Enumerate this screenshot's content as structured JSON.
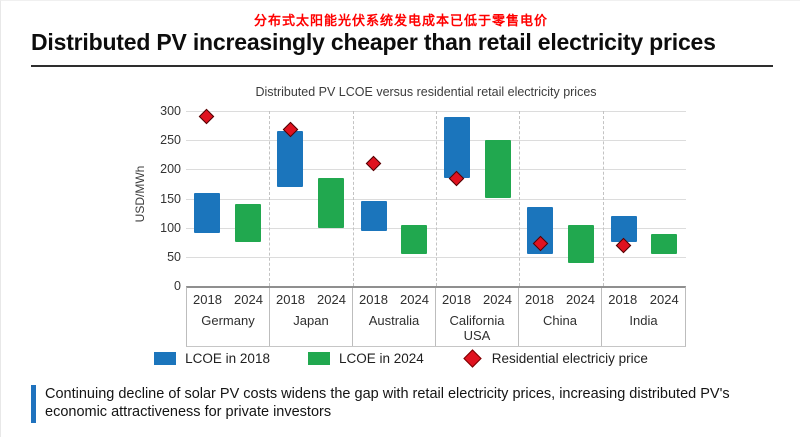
{
  "page": {
    "header_cn": "分布式太阳能光伏系统发电成本已低于零售电价",
    "title": "Distributed PV increasingly cheaper than retail electricity prices",
    "callout": "Continuing decline of solar PV costs widens the gap with retail electricity prices, increasing distributed PV's economic attractiveness for private investors"
  },
  "colors": {
    "header_cn": "#FF0000",
    "lcoe_2018": "#1B75BC",
    "lcoe_2024": "#21A84F",
    "retail_price": "#E0121F",
    "callout_accent": "#1F72BE",
    "gridline": "#dcdcdc"
  },
  "chart_data": {
    "type": "bar",
    "subtype": "floating-range-bars-with-point-markers",
    "title": "Distributed PV LCOE versus residential retail electricity prices",
    "ylabel": "USD/MWh",
    "xlabel": "",
    "ylim": [
      0,
      300
    ],
    "yticks": [
      0,
      50,
      100,
      150,
      200,
      250,
      300
    ],
    "grid": "horizontal-solid-plus-vertical-dashed-group-separators",
    "legend_position": "bottom",
    "categories": [
      "Germany",
      "Japan",
      "Australia",
      "California USA",
      "China",
      "India"
    ],
    "sub_categories": [
      "2018",
      "2024"
    ],
    "series": [
      {
        "name": "LCOE in 2018",
        "type": "range_bar",
        "color": "#1B75BC",
        "ranges": [
          [
            90,
            160
          ],
          [
            170,
            265
          ],
          [
            95,
            145
          ],
          [
            185,
            290
          ],
          [
            55,
            135
          ],
          [
            75,
            120
          ]
        ]
      },
      {
        "name": "LCOE in 2024",
        "type": "range_bar",
        "color": "#21A84F",
        "ranges": [
          [
            75,
            140
          ],
          [
            100,
            185
          ],
          [
            55,
            105
          ],
          [
            150,
            250
          ],
          [
            40,
            105
          ],
          [
            55,
            90
          ]
        ]
      },
      {
        "name": "Residential electriciy price",
        "type": "point",
        "marker": "diamond",
        "color": "#E0121F",
        "values": [
          290,
          268,
          210,
          185,
          73,
          70
        ]
      }
    ]
  }
}
